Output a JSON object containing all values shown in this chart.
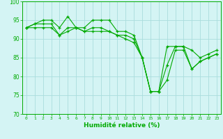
{
  "xlabel": "Humidité relative (%)",
  "bg_color": "#d4f4f4",
  "grid_color": "#aadddd",
  "line_color": "#00aa00",
  "marker": "+",
  "x": [
    0,
    1,
    2,
    3,
    4,
    5,
    6,
    7,
    8,
    9,
    10,
    11,
    12,
    13,
    14,
    15,
    16,
    17,
    18,
    19,
    20,
    21,
    22,
    23
  ],
  "y_top": [
    93,
    94,
    95,
    95,
    93,
    96,
    93,
    93,
    95,
    95,
    95,
    92,
    92,
    91,
    85,
    76,
    76,
    88,
    88,
    88,
    87,
    85,
    86,
    87
  ],
  "y_mid": [
    93,
    94,
    94,
    94,
    91,
    93,
    93,
    92,
    93,
    93,
    92,
    91,
    91,
    90,
    85,
    76,
    76,
    83,
    88,
    88,
    82,
    84,
    85,
    86
  ],
  "y_bot": [
    93,
    93,
    93,
    93,
    91,
    92,
    93,
    92,
    92,
    92,
    92,
    91,
    90,
    89,
    85,
    76,
    76,
    79,
    87,
    87,
    82,
    84,
    85,
    86
  ],
  "ylim": [
    70,
    100
  ],
  "xlim": [
    -0.5,
    23.5
  ],
  "yticks": [
    70,
    75,
    80,
    85,
    90,
    95,
    100
  ],
  "xticks": [
    0,
    1,
    2,
    3,
    4,
    5,
    6,
    7,
    8,
    9,
    10,
    11,
    12,
    13,
    14,
    15,
    16,
    17,
    18,
    19,
    20,
    21,
    22,
    23
  ]
}
